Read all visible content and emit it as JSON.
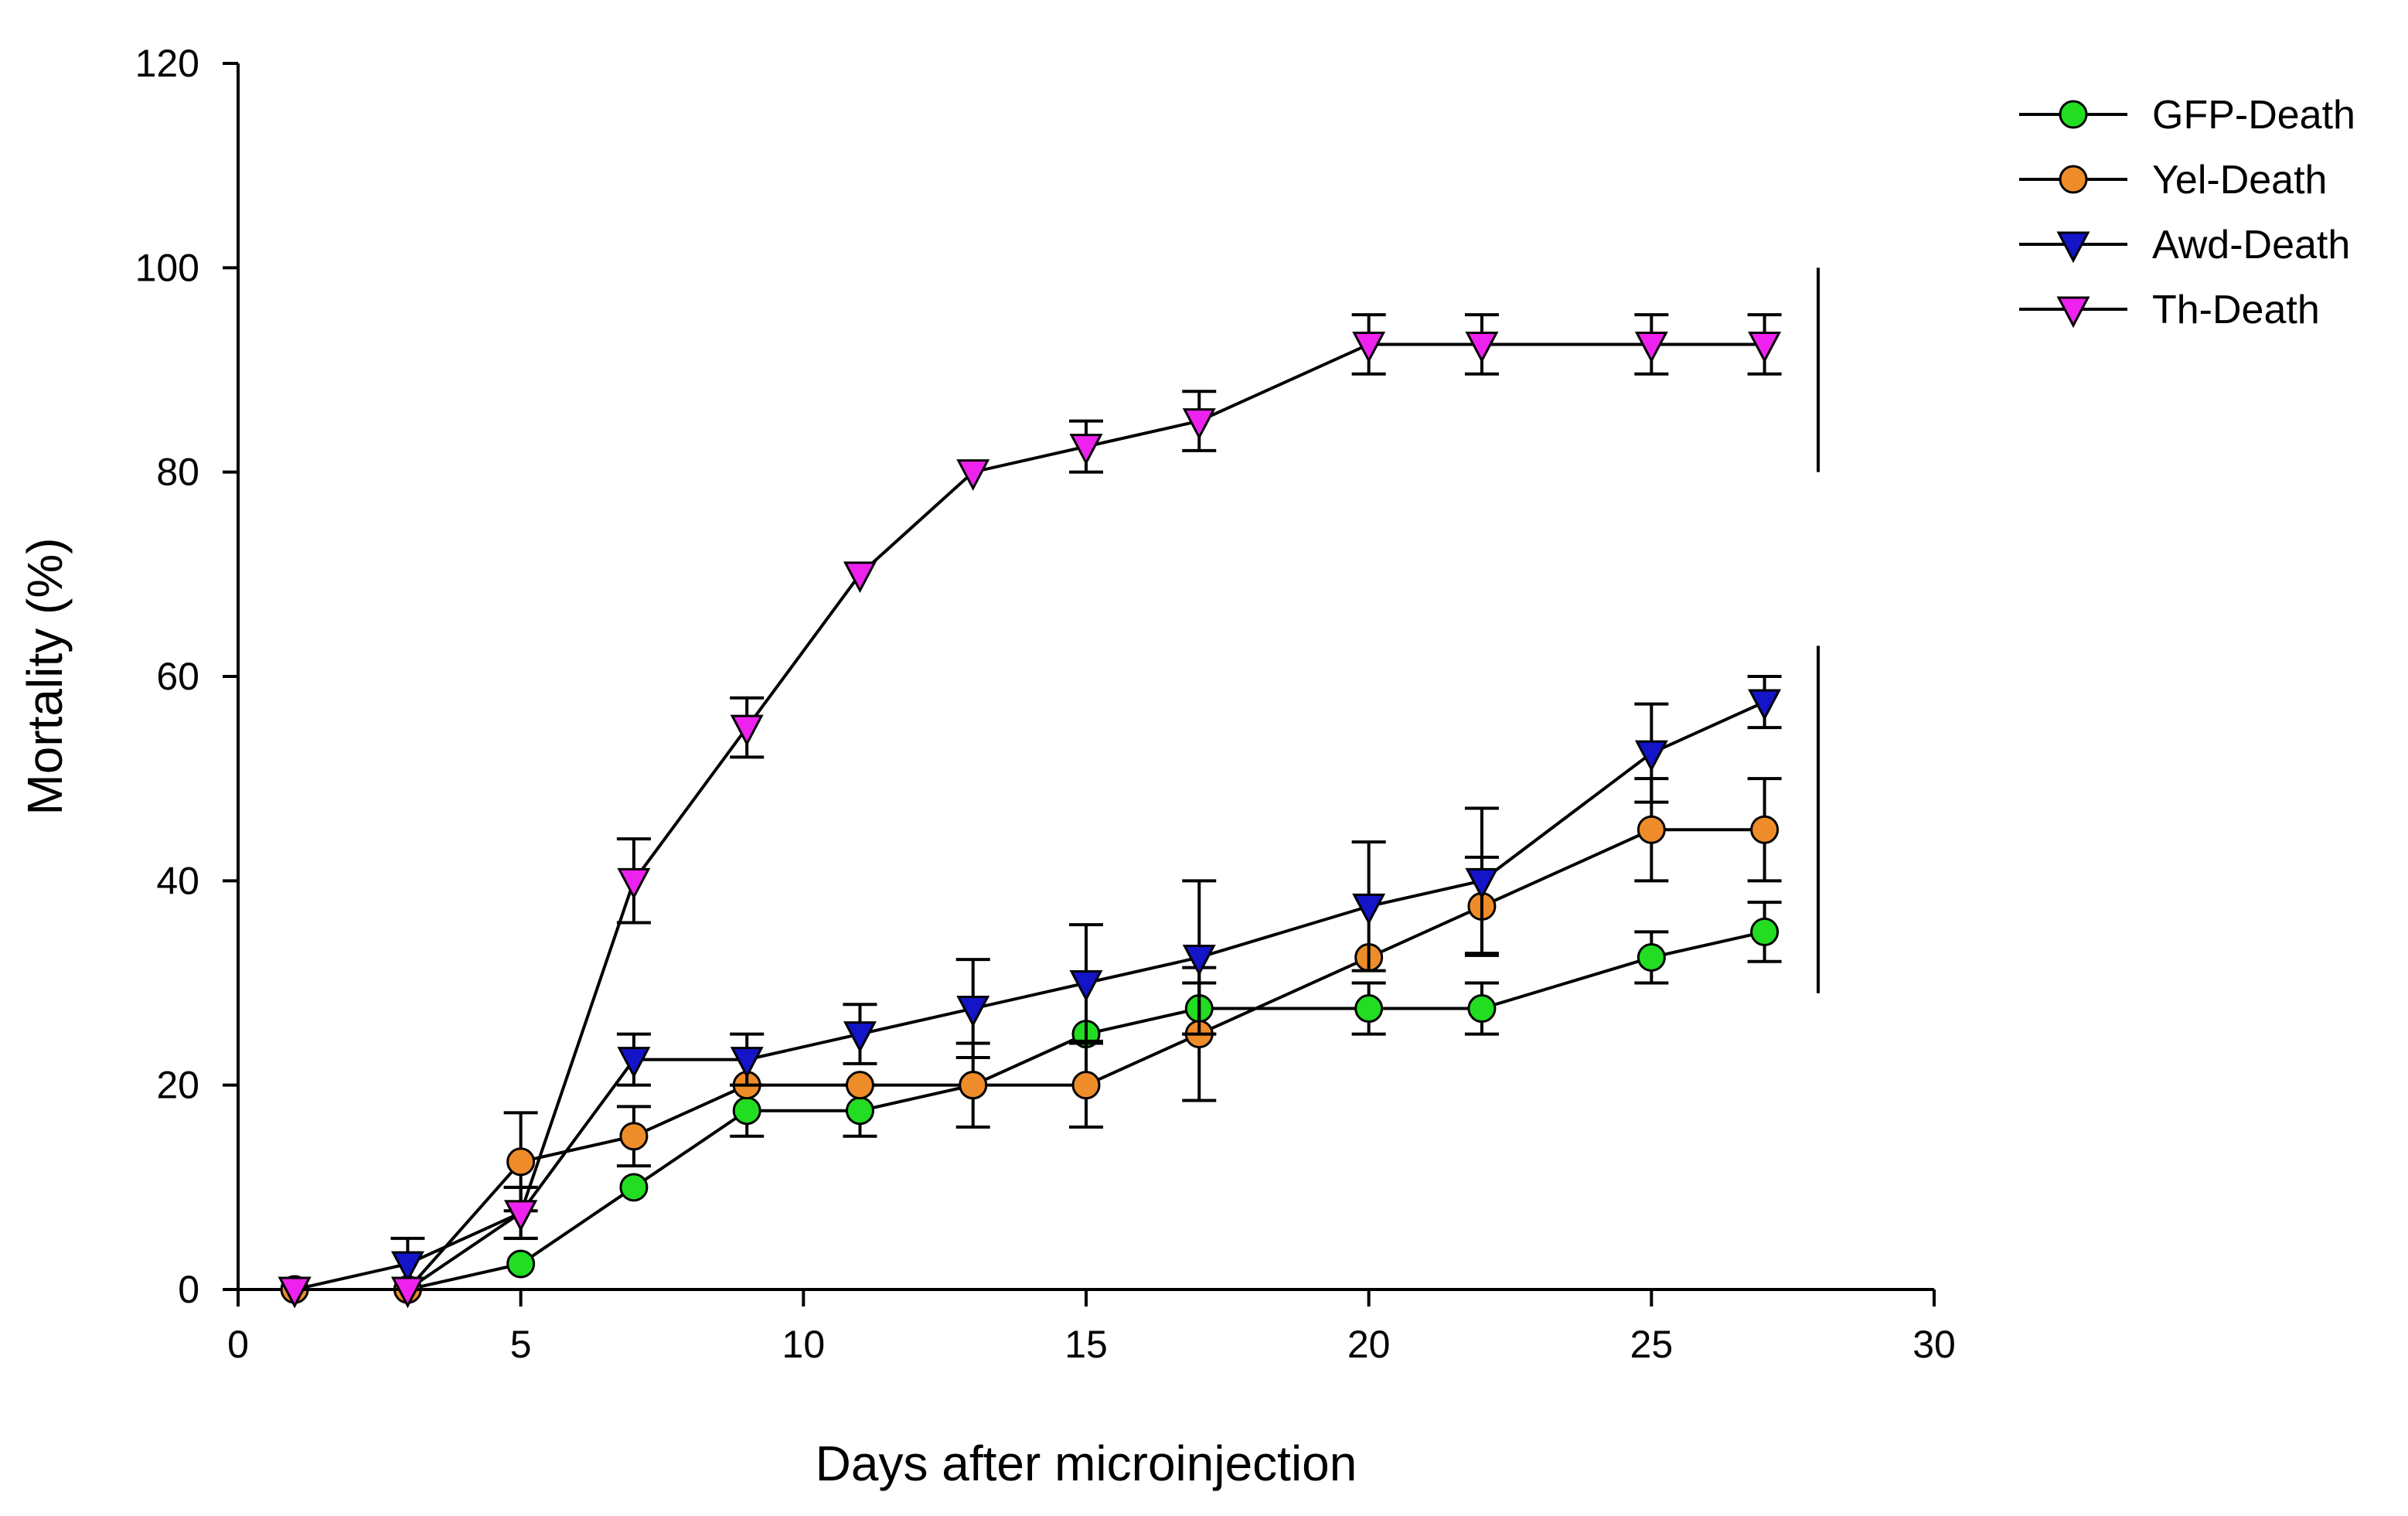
{
  "chart_data": {
    "type": "line",
    "title": "",
    "xlabel": "Days after microinjection",
    "ylabel": "Mortality (%)",
    "xlim": [
      0,
      30
    ],
    "ylim": [
      0,
      120
    ],
    "xticks": [
      0,
      5,
      10,
      15,
      20,
      25,
      30
    ],
    "yticks": [
      0,
      20,
      40,
      60,
      80,
      100,
      120
    ],
    "grid": false,
    "legend_position": "top-right",
    "series": [
      {
        "name": "GFP-Death",
        "marker": "circle",
        "color": "#22dd22",
        "x": [
          1,
          3,
          5,
          7,
          9,
          11,
          13,
          15,
          17,
          20,
          22,
          25,
          27
        ],
        "y": [
          0,
          0,
          2.5,
          10,
          17.5,
          17.5,
          20,
          25,
          27.5,
          27.5,
          27.5,
          32.5,
          35
        ],
        "err": [
          0,
          0,
          0,
          0,
          2.5,
          2.5,
          0,
          0,
          2.5,
          2.5,
          2.5,
          2.5,
          2.9
        ]
      },
      {
        "name": "Yel-Death",
        "marker": "circle",
        "color": "#ee8c2a",
        "x": [
          1,
          3,
          5,
          7,
          9,
          11,
          13,
          15,
          17,
          20,
          22,
          25,
          27
        ],
        "y": [
          0,
          0,
          12.5,
          15,
          20,
          20,
          20,
          20,
          25,
          32.5,
          37.5,
          45,
          45
        ],
        "err": [
          0,
          0,
          4.8,
          2.9,
          0,
          0,
          4.1,
          4.1,
          6.5,
          0,
          4.8,
          5,
          5
        ]
      },
      {
        "name": "Awd-Death",
        "marker": "triangle-down",
        "color": "#1414c8",
        "x": [
          1,
          3,
          5,
          7,
          9,
          11,
          13,
          15,
          17,
          20,
          22,
          25,
          27
        ],
        "y": [
          0,
          2.5,
          7.5,
          22.5,
          22.5,
          25,
          27.5,
          30,
          32.5,
          37.5,
          40,
          52.5,
          57.5
        ],
        "err": [
          0,
          2.5,
          2.5,
          2.5,
          2.5,
          2.9,
          4.8,
          5.7,
          7.5,
          6.3,
          7.1,
          4.8,
          2.5
        ]
      },
      {
        "name": "Th-Death",
        "marker": "triangle-down",
        "color": "#ee22ee",
        "x": [
          1,
          3,
          5,
          7,
          9,
          11,
          13,
          15,
          17,
          20,
          22,
          25,
          27
        ],
        "y": [
          0,
          0,
          7.5,
          40,
          55,
          70,
          80,
          82.5,
          85,
          92.5,
          92.5,
          92.5,
          92.5
        ],
        "err": [
          0,
          0,
          2.5,
          4.1,
          2.9,
          0,
          0,
          2.5,
          2.9,
          2.9,
          2.9,
          2.9,
          2.9
        ]
      }
    ],
    "group_brackets": [
      {
        "y_range": [
          80,
          100
        ]
      },
      {
        "y_range": [
          29,
          63
        ]
      }
    ]
  }
}
